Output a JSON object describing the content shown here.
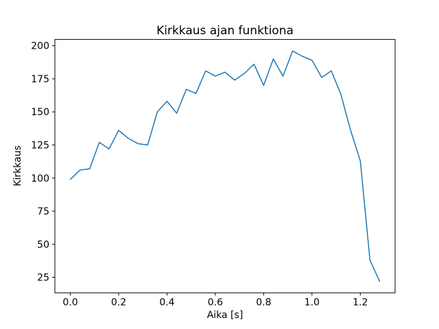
{
  "figure": {
    "background": "#ffffff"
  },
  "chart_data": {
    "type": "line",
    "title": "Kirkkaus ajan funktiona",
    "xlabel": "Aika [s]",
    "ylabel": "Kirkkaus",
    "x": [
      0.0,
      0.04,
      0.08,
      0.12,
      0.16,
      0.2,
      0.24,
      0.28,
      0.32,
      0.36,
      0.4,
      0.44,
      0.48,
      0.52,
      0.56,
      0.6,
      0.64,
      0.68,
      0.72,
      0.76,
      0.8,
      0.84,
      0.88,
      0.92,
      0.96,
      1.0,
      1.04,
      1.08,
      1.12,
      1.16,
      1.2,
      1.24,
      1.28
    ],
    "y": [
      99,
      106,
      107,
      127,
      122,
      136,
      130,
      126,
      125,
      150,
      158,
      149,
      167,
      164,
      181,
      177,
      180,
      174,
      179,
      186,
      170,
      190,
      177,
      196,
      192,
      189,
      176,
      181,
      163,
      136,
      113,
      38,
      22
    ],
    "xlim": [
      -0.064,
      1.344
    ],
    "ylim": [
      13.3,
      204.7
    ],
    "xticks": [
      0.0,
      0.2,
      0.4,
      0.6,
      0.8,
      1.0,
      1.2
    ],
    "xtick_labels": [
      "0.0",
      "0.2",
      "0.4",
      "0.6",
      "0.8",
      "1.0",
      "1.2"
    ],
    "yticks": [
      25,
      50,
      75,
      100,
      125,
      150,
      175,
      200
    ],
    "ytick_labels": [
      "25",
      "50",
      "75",
      "100",
      "125",
      "150",
      "175",
      "200"
    ],
    "grid": false,
    "legend": null,
    "line_color": "#1f77b4",
    "line_width": 1.5,
    "axes_color": "#000000"
  }
}
